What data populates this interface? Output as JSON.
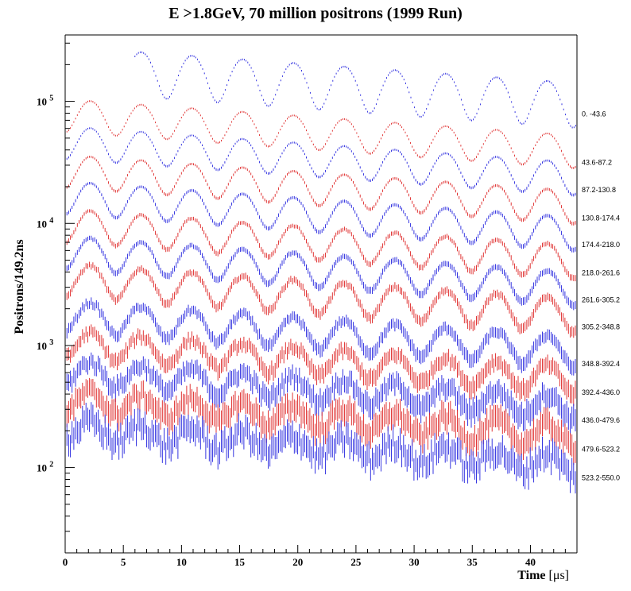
{
  "chart_data": {
    "type": "scatter",
    "title": "E >1.8GeV, 70 million positrons (1999 Run)",
    "ylabel": "Positrons/149.2ns",
    "xlabel": "Time",
    "xlabel_unit": "[μs]",
    "x_range": [
      0,
      44
    ],
    "y_log": true,
    "y_range": [
      20,
      350000
    ],
    "grid": false,
    "x_ticks": [
      0,
      5,
      10,
      15,
      20,
      25,
      30,
      35,
      40
    ],
    "y_ticks": [
      {
        "value": 100,
        "label": "10",
        "exp": "2"
      },
      {
        "value": 1000,
        "label": "10",
        "exp": "3"
      },
      {
        "value": 10000,
        "label": "10",
        "exp": "4"
      },
      {
        "value": 100000,
        "label": "10",
        "exp": "5"
      }
    ],
    "colors": {
      "blue": "#2020dd",
      "red": "#dd2020",
      "axis": "#000000"
    },
    "wiggle_period_us": 4.365,
    "series": [
      {
        "name": "0. -43.6",
        "color": "blue",
        "x_start": 6.0,
        "y0": 200000,
        "amp": 0.4,
        "noise": 0.0
      },
      {
        "name": "43.6-87.2",
        "color": "red",
        "x_start": 0.0,
        "y0": 80000,
        "amp": 0.3,
        "noise": 0.0
      },
      {
        "name": "87.2-130.8",
        "color": "blue",
        "x_start": 0.0,
        "y0": 48000,
        "amp": 0.3,
        "noise": 0.0
      },
      {
        "name": "130.8-174.4",
        "color": "red",
        "x_start": 0.0,
        "y0": 28000,
        "amp": 0.3,
        "noise": 0.0
      },
      {
        "name": "174.4-218.0",
        "color": "blue",
        "x_start": 0.0,
        "y0": 17000,
        "amp": 0.3,
        "noise": 0.0
      },
      {
        "name": "218.0-261.6",
        "color": "red",
        "x_start": 0.0,
        "y0": 10000,
        "amp": 0.3,
        "noise": 0.01
      },
      {
        "name": "261.6-305.2",
        "color": "blue",
        "x_start": 0.0,
        "y0": 6000,
        "amp": 0.3,
        "noise": 0.01
      },
      {
        "name": "305.2-348.8",
        "color": "red",
        "x_start": 0.0,
        "y0": 3600,
        "amp": 0.3,
        "noise": 0.02
      },
      {
        "name": "348.8-392.4",
        "color": "blue",
        "x_start": 0.0,
        "y0": 1800,
        "amp": 0.28,
        "noise": 0.03
      },
      {
        "name": "392.4-436.0",
        "color": "red",
        "x_start": 0.0,
        "y0": 1050,
        "amp": 0.25,
        "noise": 0.05
      },
      {
        "name": "436.0-479.6",
        "color": "blue",
        "x_start": 0.0,
        "y0": 620,
        "amp": 0.22,
        "noise": 0.07
      },
      {
        "name": "479.6-523.2",
        "color": "red",
        "x_start": 0.0,
        "y0": 360,
        "amp": 0.2,
        "noise": 0.09
      },
      {
        "name": "523.2-550.0",
        "color": "blue",
        "x_start": 0.0,
        "y0": 210,
        "amp": 0.18,
        "noise": 0.12
      }
    ]
  }
}
